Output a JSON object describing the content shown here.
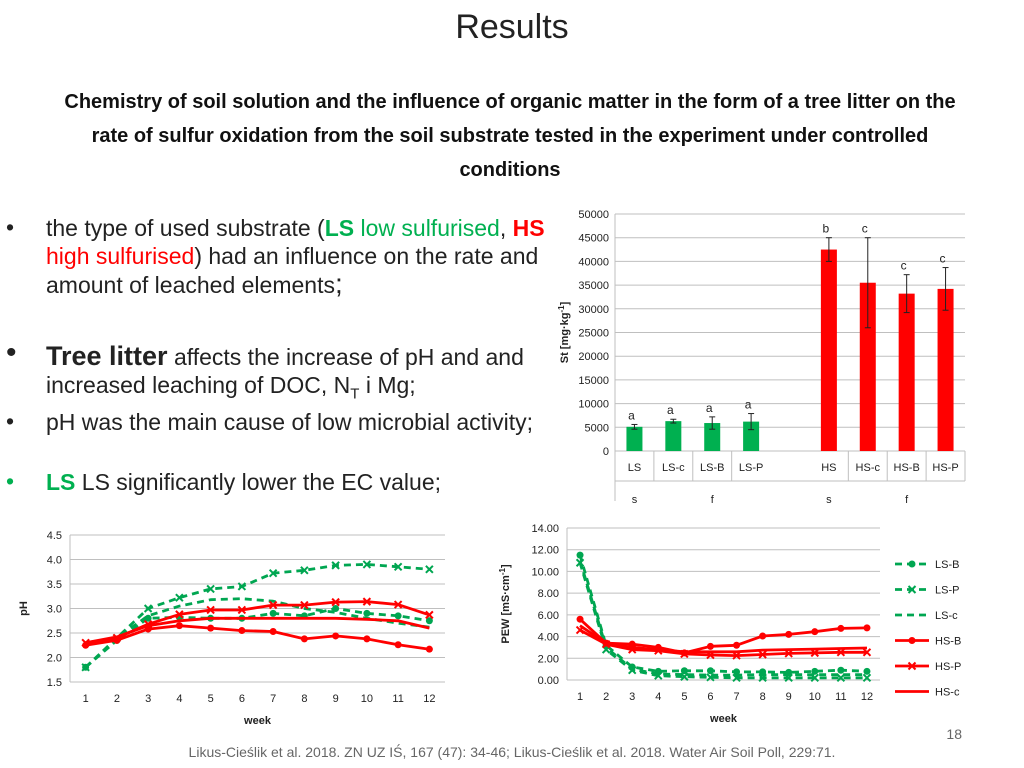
{
  "title": "Results",
  "subtitle": "Chemistry of soil solution and the influence of organic matter in the form of a tree litter on the rate of sulfur oxidation from the soil substrate tested in the experiment under controlled conditions",
  "bullets": [
    {
      "t1": "the type of used substrate (",
      "ls": "LS",
      "low": " low sulfurised",
      "sep": ", ",
      "hs": "HS",
      "high": " high sulfurised",
      "t2": ") had an influence on the rate and amount of leached elements",
      "semi": ";"
    },
    {
      "big": "Tree litter",
      "text": " affects the increase of pH and and increased leaching of DOC, N",
      "sub": "T",
      "text2": " i Mg;"
    },
    {
      "text": "pH was the main cause of low microbial activity;"
    },
    {
      "ls": "LS",
      "text": " LS significantly lower the EC value;"
    }
  ],
  "footer": "Likus-Cieślik et al. 2018. ZN UZ IŚ, 167 (47): 34-46; Likus-Cieślik et al. 2018. Water Air Soil Poll, 229:71.",
  "page_number": "18",
  "colors": {
    "green": "#00b050",
    "red": "#ff0000",
    "dark_green": "#00a651"
  },
  "chart_data": [
    {
      "type": "bar",
      "ylabel": "St [mg·kg",
      "ylabel_sup": "-1",
      "ylabel_close": "]",
      "ylim": [
        0,
        50000
      ],
      "yticks": [
        0,
        5000,
        10000,
        15000,
        20000,
        25000,
        30000,
        35000,
        40000,
        45000,
        50000
      ],
      "categories": [
        "LS",
        "LS-c",
        "LS-B",
        "LS-P",
        "",
        "HS",
        "HS-c",
        "HS-B",
        "HS-P"
      ],
      "values": [
        5100,
        6300,
        5900,
        6200,
        null,
        42500,
        35500,
        33200,
        34200
      ],
      "errors": [
        500,
        400,
        1300,
        1700,
        null,
        2500,
        9500,
        4000,
        4500
      ],
      "letters": [
        "a",
        "a",
        "a",
        "a",
        "",
        "b",
        "c",
        "c",
        "c"
      ],
      "colors": [
        "#00b050",
        "#00b050",
        "#00b050",
        "#00b050",
        "",
        "#ff0000",
        "#ff0000",
        "#ff0000",
        "#ff0000"
      ],
      "group_row": [
        {
          "label": "s",
          "from": 0,
          "to": 0
        },
        {
          "label": "f",
          "from": 1,
          "to": 3
        },
        {
          "label": "s",
          "from": 5,
          "to": 5
        },
        {
          "label": "f",
          "from": 6,
          "to": 8
        }
      ]
    },
    {
      "type": "line",
      "ylabel": "pH",
      "xlabel": "week",
      "ylim": [
        1.5,
        4.5
      ],
      "yticks": [
        "1.5",
        "2.0",
        "2.5",
        "3.0",
        "3.5",
        "4.0",
        "4.5"
      ],
      "x": [
        1,
        2,
        3,
        4,
        5,
        6,
        7,
        8,
        9,
        10,
        11,
        12
      ],
      "series": [
        {
          "name": "LS-B",
          "values": [
            1.8,
            2.35,
            2.8,
            2.82,
            2.8,
            2.8,
            2.9,
            2.85,
            3.0,
            2.9,
            2.85,
            2.75
          ]
        },
        {
          "name": "LS-P",
          "values": [
            1.8,
            2.4,
            3.0,
            3.22,
            3.4,
            3.45,
            3.72,
            3.78,
            3.88,
            3.9,
            3.85,
            3.8
          ]
        },
        {
          "name": "LS-c",
          "values": [
            1.8,
            2.4,
            2.85,
            3.05,
            3.18,
            3.2,
            3.15,
            3.0,
            2.92,
            2.8,
            2.7,
            2.62
          ]
        },
        {
          "name": "HS-B",
          "values": [
            2.25,
            2.35,
            2.58,
            2.65,
            2.6,
            2.55,
            2.53,
            2.38,
            2.44,
            2.38,
            2.26,
            2.17
          ]
        },
        {
          "name": "HS-P",
          "values": [
            2.3,
            2.4,
            2.68,
            2.88,
            2.97,
            2.97,
            3.07,
            3.07,
            3.13,
            3.14,
            3.08,
            2.87
          ]
        },
        {
          "name": "HS-c",
          "values": [
            2.3,
            2.42,
            2.65,
            2.75,
            2.8,
            2.8,
            2.8,
            2.8,
            2.8,
            2.78,
            2.75,
            2.6
          ]
        }
      ]
    },
    {
      "type": "line",
      "ylabel": "PEW [mS·cm",
      "ylabel_sup": "-1",
      "ylabel_close": "]",
      "xlabel": "week",
      "ylim": [
        0,
        14
      ],
      "yticks": [
        "0.00",
        "2.00",
        "4.00",
        "6.00",
        "8.00",
        "10.00",
        "12.00",
        "14.00"
      ],
      "x": [
        1,
        2,
        3,
        4,
        5,
        6,
        7,
        8,
        9,
        10,
        11,
        12
      ],
      "series": [
        {
          "name": "LS-B",
          "values": [
            11.5,
            3.2,
            1.2,
            0.8,
            0.85,
            0.85,
            0.75,
            0.75,
            0.7,
            0.8,
            0.9,
            0.8
          ]
        },
        {
          "name": "LS-P",
          "values": [
            10.8,
            2.8,
            0.9,
            0.4,
            0.3,
            0.25,
            0.2,
            0.2,
            0.2,
            0.2,
            0.2,
            0.2
          ]
        },
        {
          "name": "LS-c",
          "values": [
            11.0,
            3.0,
            1.0,
            0.55,
            0.5,
            0.45,
            0.45,
            0.5,
            0.5,
            0.5,
            0.5,
            0.5
          ]
        },
        {
          "name": "HS-B",
          "values": [
            5.6,
            3.4,
            3.3,
            3.0,
            2.5,
            3.1,
            3.2,
            4.05,
            4.2,
            4.45,
            4.75,
            4.8
          ]
        },
        {
          "name": "HS-P",
          "values": [
            4.6,
            3.3,
            2.8,
            2.7,
            2.4,
            2.3,
            2.25,
            2.35,
            2.45,
            2.5,
            2.55,
            2.55
          ]
        },
        {
          "name": "HS-c",
          "values": [
            5.0,
            3.4,
            3.0,
            2.8,
            2.6,
            2.6,
            2.6,
            2.75,
            2.8,
            2.85,
            2.9,
            2.95
          ]
        }
      ],
      "legend_position": "right"
    }
  ]
}
